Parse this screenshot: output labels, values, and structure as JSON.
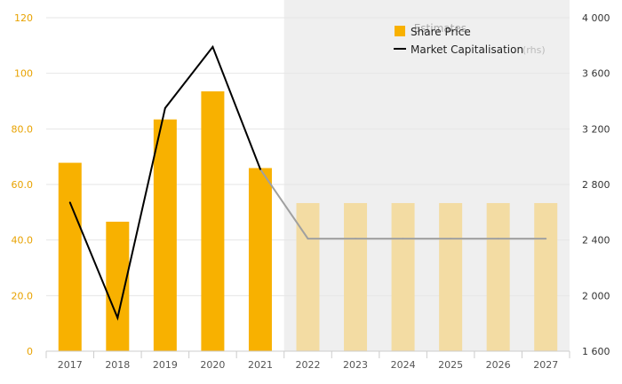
{
  "chart_data": {
    "type": "bar",
    "categories": [
      "2017",
      "2018",
      "2019",
      "2020",
      "2021",
      "2022",
      "2023",
      "2024",
      "2025",
      "2026",
      "2027"
    ],
    "estimates_label": "Estimates",
    "estimates_start_category": "2022",
    "series": [
      {
        "name": "Share Price",
        "type": "bar",
        "axis": "left",
        "color": "#F8B100",
        "estimate_color": "#F3DCA3",
        "values": [
          67.8,
          46.6,
          83.4,
          93.5,
          65.9,
          53.3,
          53.3,
          53.3,
          53.3,
          53.3,
          53.3
        ]
      },
      {
        "name": "Market Capitalisation",
        "name_suffix": "(rhs)",
        "type": "line",
        "axis": "right",
        "color": "#000000",
        "estimate_color": "#A0A0A0",
        "values": [
          2670,
          1840,
          3350,
          3790,
          2910,
          2410,
          2410,
          2410,
          2410,
          2410,
          2410
        ]
      }
    ],
    "y_left": {
      "min": 0,
      "max": 120,
      "ticks": [
        0,
        20,
        40,
        60,
        80,
        100,
        120
      ],
      "tick_labels": [
        "0",
        "20.0",
        "40.0",
        "60.0",
        "80.0",
        "100",
        "120"
      ],
      "tick_color": "#E8A200"
    },
    "y_right": {
      "min": 1600,
      "max": 4000,
      "ticks": [
        1600,
        2000,
        2400,
        2800,
        3200,
        3600,
        4000
      ],
      "tick_labels": [
        "1 600",
        "2 000",
        "2 400",
        "2 800",
        "3 200",
        "3 600",
        "4 000"
      ]
    },
    "legend_position": "top-right",
    "grid": true
  }
}
